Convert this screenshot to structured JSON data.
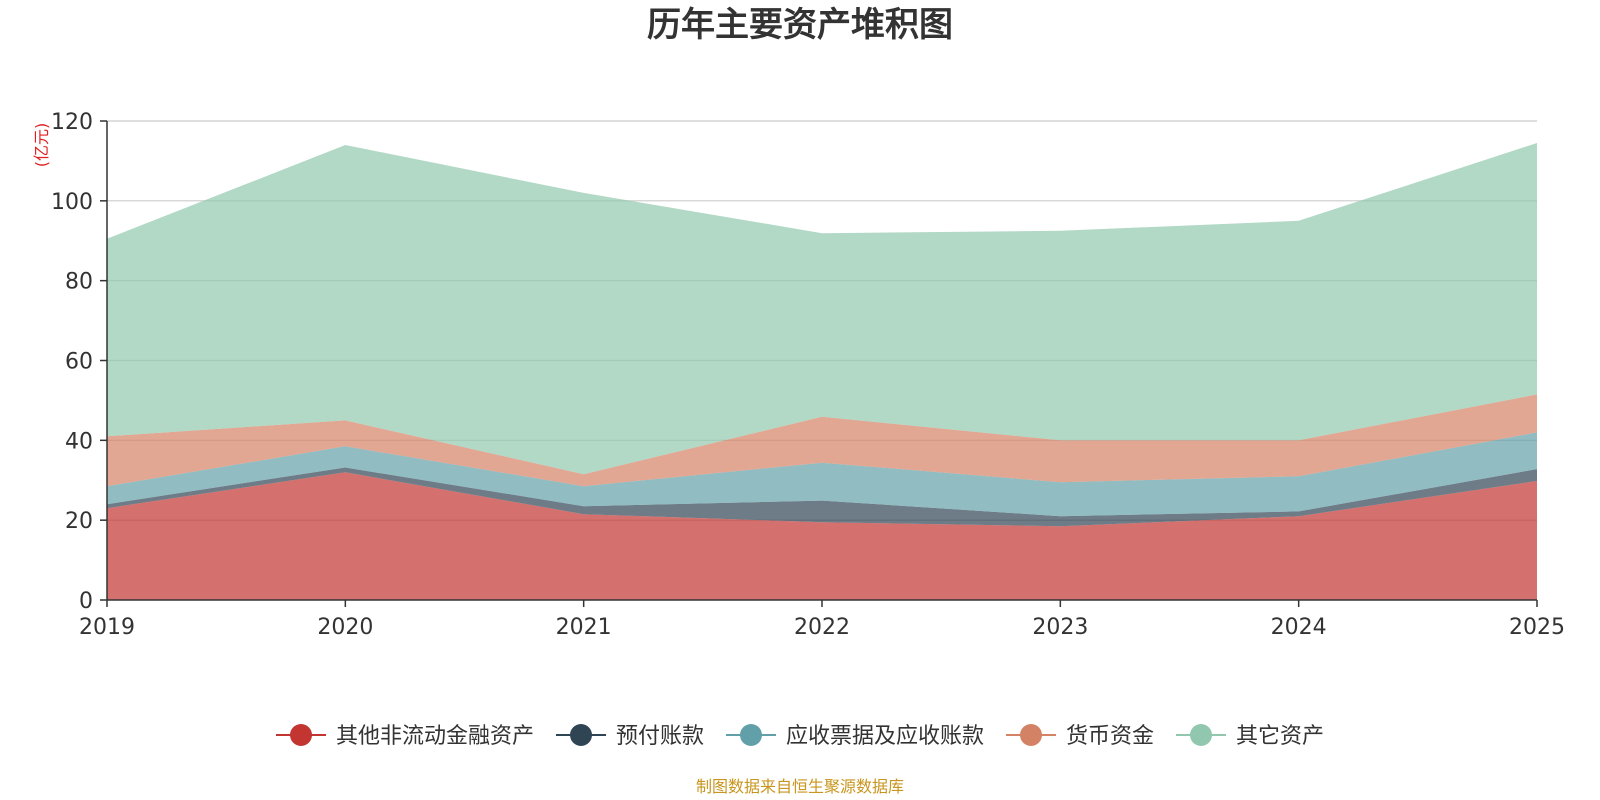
{
  "chart_data": {
    "type": "area",
    "stacked": true,
    "title": "历年主要资产堆积图",
    "unit_label": "(亿元)",
    "xlabel": "",
    "ylabel": "(亿元)",
    "categories": [
      "2019",
      "2020",
      "2021",
      "2022",
      "2023",
      "2024",
      "2025"
    ],
    "ylim": [
      0,
      120
    ],
    "yticks": [
      0,
      20,
      40,
      60,
      80,
      100,
      120
    ],
    "grid": true,
    "legend_position": "bottom",
    "source": "制图数据来自恒生聚源数据库",
    "series": [
      {
        "name": "其他非流动金融资产",
        "color": "#c23531",
        "values": [
          23.0,
          32.0,
          21.5,
          19.5,
          18.5,
          21.0,
          29.8
        ]
      },
      {
        "name": "预付账款",
        "color": "#2f4554",
        "values": [
          1.0,
          1.2,
          2.0,
          5.4,
          2.5,
          1.2,
          3.0
        ]
      },
      {
        "name": "应收票据及应收账款",
        "color": "#61a0a8",
        "values": [
          4.5,
          5.3,
          5.0,
          9.5,
          8.5,
          8.8,
          9.2
        ]
      },
      {
        "name": "货币资金",
        "color": "#d48265",
        "values": [
          12.5,
          6.5,
          3.0,
          11.5,
          10.5,
          9.0,
          9.5
        ]
      },
      {
        "name": "其它资产",
        "color": "#91c7ae",
        "values": [
          49.5,
          69.0,
          70.5,
          46.0,
          52.5,
          55.0,
          63.0
        ]
      }
    ]
  }
}
